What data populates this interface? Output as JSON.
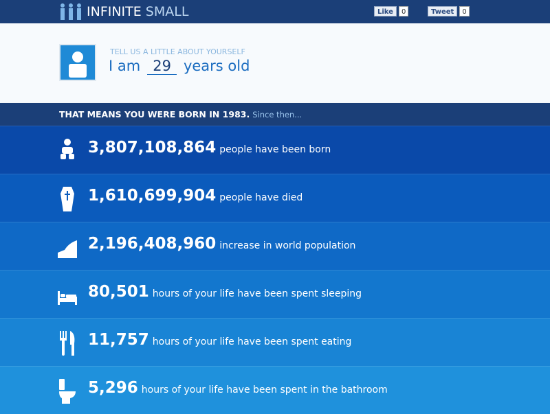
{
  "header": {
    "logo": {
      "bold": "INFINITE",
      "light": "SMALL"
    },
    "like": {
      "label": "Like",
      "count": "0"
    },
    "tweet": {
      "label": "Tweet",
      "count": "0"
    }
  },
  "profile": {
    "prompt": "TELL US A LITTLE ABOUT YOURSELF",
    "before": "I am",
    "age": "29",
    "after": "years old"
  },
  "banner": {
    "main": "THAT MEANS YOU WERE BORN IN 1983.",
    "aside": "Since then..."
  },
  "stats": [
    {
      "number": "3,807,108,864",
      "text": "people have been born"
    },
    {
      "number": "1,610,699,904",
      "text": "people have died"
    },
    {
      "number": "2,196,408,960",
      "text": "increase in world population"
    },
    {
      "number": "80,501",
      "text": "hours of your life have been spent sleeping"
    },
    {
      "number": "11,757",
      "text": "hours of your life have been spent eating"
    },
    {
      "number": "5,296",
      "text": "hours of your life have been spent in the bathroom"
    }
  ]
}
